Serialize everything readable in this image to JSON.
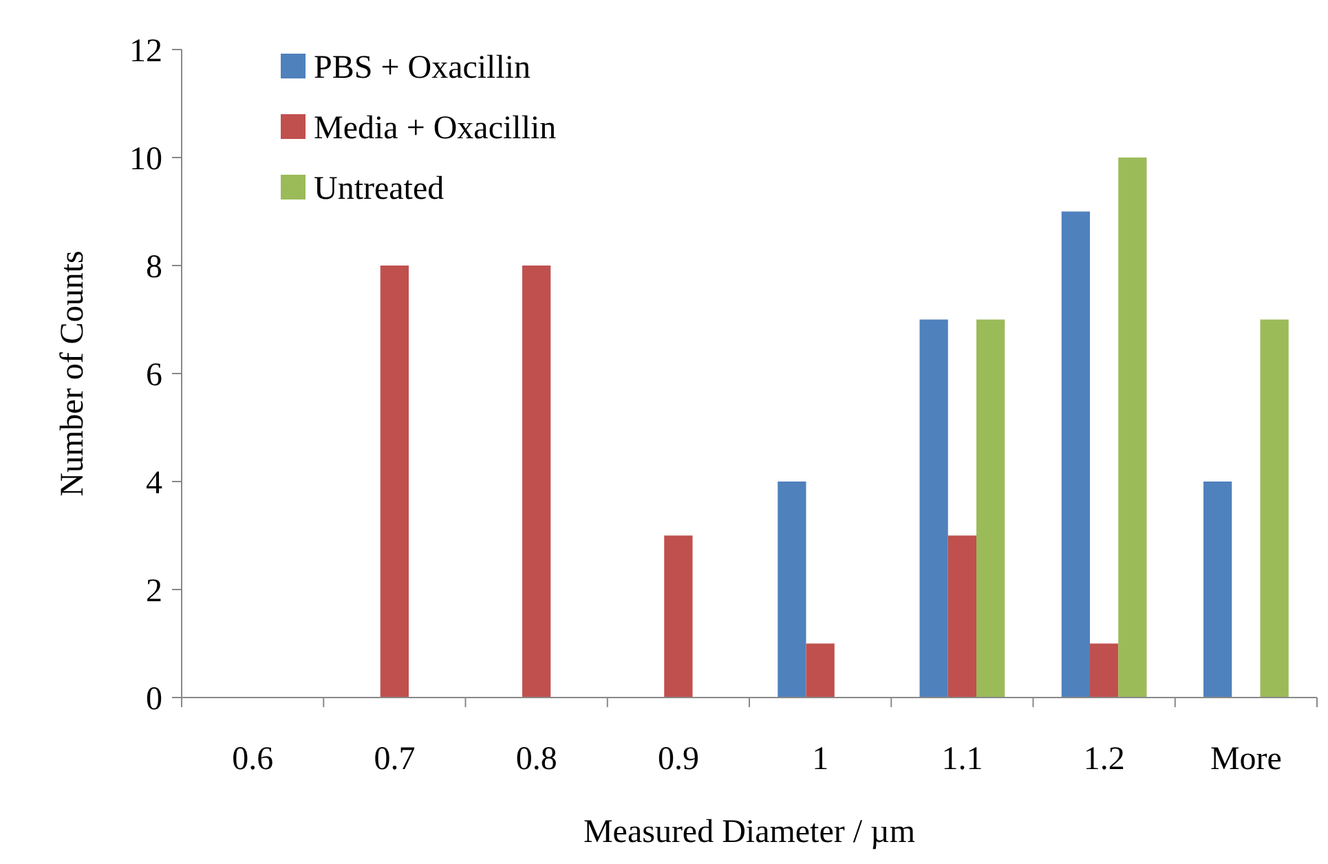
{
  "chart_data": {
    "type": "bar",
    "xlabel": "Measured Diameter / µm",
    "ylabel": "Number of Counts",
    "categories": [
      "0.6",
      "0.7",
      "0.8",
      "0.9",
      "1",
      "1.1",
      "1.2",
      "More"
    ],
    "series": [
      {
        "name": "PBS + Oxacillin",
        "color": "#4f81bd",
        "values": [
          0,
          0,
          0,
          0,
          4,
          7,
          9,
          4
        ]
      },
      {
        "name": "Media + Oxacillin",
        "color": "#c0504d",
        "values": [
          0,
          8,
          8,
          3,
          1,
          3,
          1,
          0
        ]
      },
      {
        "name": "Untreated",
        "color": "#9bbb59",
        "values": [
          0,
          0,
          0,
          0,
          0,
          7,
          10,
          7
        ]
      }
    ],
    "ylim": [
      0,
      12
    ],
    "yticks": [
      0,
      2,
      4,
      6,
      8,
      10,
      12
    ],
    "grid": false,
    "legend": "top left"
  }
}
